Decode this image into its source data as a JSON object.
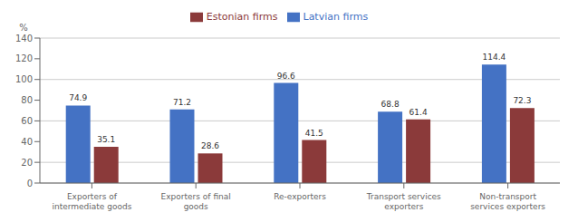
{
  "chart_data": {
    "type": "bar",
    "categories": [
      "Exporters of\nintermediate goods",
      "Exporters of final\ngoods",
      "Re-exporters",
      "Transport services\nexporters",
      "Non-transport\nservices exporters"
    ],
    "series": [
      {
        "name": "Latvian firms",
        "color": "#4472C4",
        "values": [
          74.9,
          71.2,
          96.6,
          68.8,
          114.4
        ]
      },
      {
        "name": "Estonian firms",
        "color": "#8B3A3A",
        "values": [
          35.1,
          28.6,
          41.5,
          61.4,
          72.3
        ]
      }
    ],
    "ylabel": "%",
    "ylim": [
      0,
      140
    ],
    "yticks": [
      0,
      20,
      40,
      60,
      80,
      100,
      120,
      140
    ],
    "grid": true,
    "legend": "top",
    "data_labels": true
  }
}
